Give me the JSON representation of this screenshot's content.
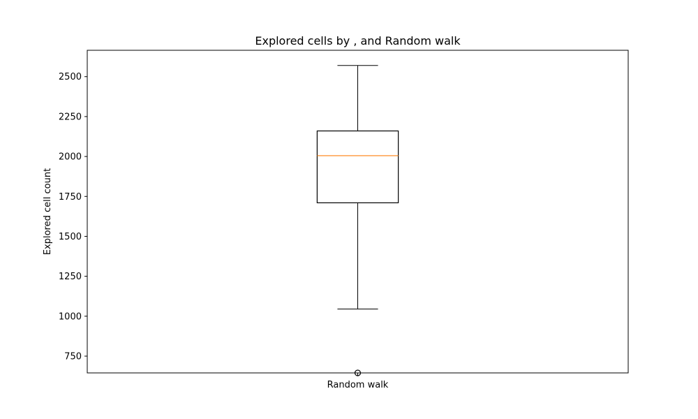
{
  "chart_data": {
    "type": "box",
    "title": "Explored cells by , and Random walk",
    "xlabel": "",
    "ylabel": "Explored cell count",
    "ylim": [
      645,
      2665
    ],
    "yticks": [
      750,
      1000,
      1250,
      1500,
      1750,
      2000,
      2250,
      2500
    ],
    "grid": false,
    "categories": [
      "Random walk"
    ],
    "boxes": [
      {
        "label": "Random walk",
        "whisker_low": 1045,
        "q1": 1710,
        "median": 2005,
        "q3": 2160,
        "whisker_high": 2570,
        "outliers": [
          645
        ]
      }
    ],
    "colors": {
      "box": "#000000",
      "median": "#ff7f0e",
      "flier": "#000000"
    }
  }
}
